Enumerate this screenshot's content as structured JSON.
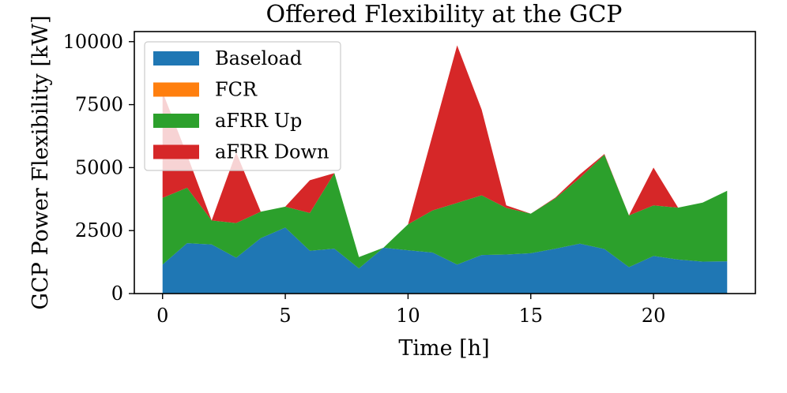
{
  "chart_data": {
    "type": "area",
    "title": "Offered Flexibility at the GCP",
    "xlabel": "Time [h]",
    "ylabel": "GCP Power Flexibility [kW]",
    "xlim": [
      -1.15,
      24.15
    ],
    "ylim": [
      0,
      10400
    ],
    "xticks": [
      0,
      5,
      10,
      15,
      20
    ],
    "yticks": [
      0,
      2500,
      5000,
      7500,
      10000
    ],
    "legend_position": "upper-left",
    "stacked": true,
    "x": [
      0,
      1,
      2,
      3,
      4,
      5,
      6,
      7,
      8,
      9,
      10,
      11,
      12,
      13,
      14,
      15,
      16,
      17,
      18,
      19,
      20,
      21,
      22,
      23
    ],
    "series": [
      {
        "name": "Baseload",
        "color": "#1f77b4",
        "values": [
          1150,
          2000,
          1950,
          1420,
          2200,
          2620,
          1700,
          1780,
          1000,
          1820,
          1720,
          1630,
          1150,
          1530,
          1550,
          1600,
          1780,
          1980,
          1770,
          1050,
          1490,
          1350,
          1270,
          1280
        ]
      },
      {
        "name": "FCR",
        "color": "#ff7f0e",
        "values": [
          0,
          0,
          0,
          0,
          0,
          0,
          0,
          0,
          0,
          0,
          0,
          0,
          0,
          0,
          0,
          0,
          0,
          0,
          0,
          0,
          0,
          0,
          0,
          0
        ]
      },
      {
        "name": "aFRR Up",
        "color": "#2ca02c",
        "values": [
          2650,
          2200,
          950,
          1380,
          1050,
          830,
          1500,
          3000,
          450,
          0,
          1030,
          1670,
          2450,
          2370,
          1850,
          1570,
          2000,
          2610,
          3740,
          2050,
          2010,
          2060,
          2340,
          2800
        ]
      },
      {
        "name": "aFRR Down",
        "color": "#d62728",
        "values": [
          4200,
          1300,
          0,
          2800,
          0,
          0,
          1300,
          0,
          0,
          0,
          0,
          3000,
          6250,
          3400,
          100,
          0,
          30,
          140,
          30,
          0,
          1500,
          0,
          0,
          0
        ]
      }
    ]
  }
}
